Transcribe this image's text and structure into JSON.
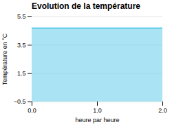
{
  "chart_data": {
    "type": "area",
    "title": "Evolution de la température",
    "xlabel": "heure par heure",
    "ylabel": "Température en °C",
    "x": [
      0,
      2
    ],
    "values": [
      4.7,
      4.7
    ],
    "color": "#55c8e8",
    "xlim": [
      0,
      2
    ],
    "ylim": [
      -0.5,
      5.5
    ],
    "xticks": [
      0,
      1,
      2
    ],
    "yticks": [
      -0.5,
      1.5,
      3.5,
      5.5
    ],
    "grid": "y"
  }
}
